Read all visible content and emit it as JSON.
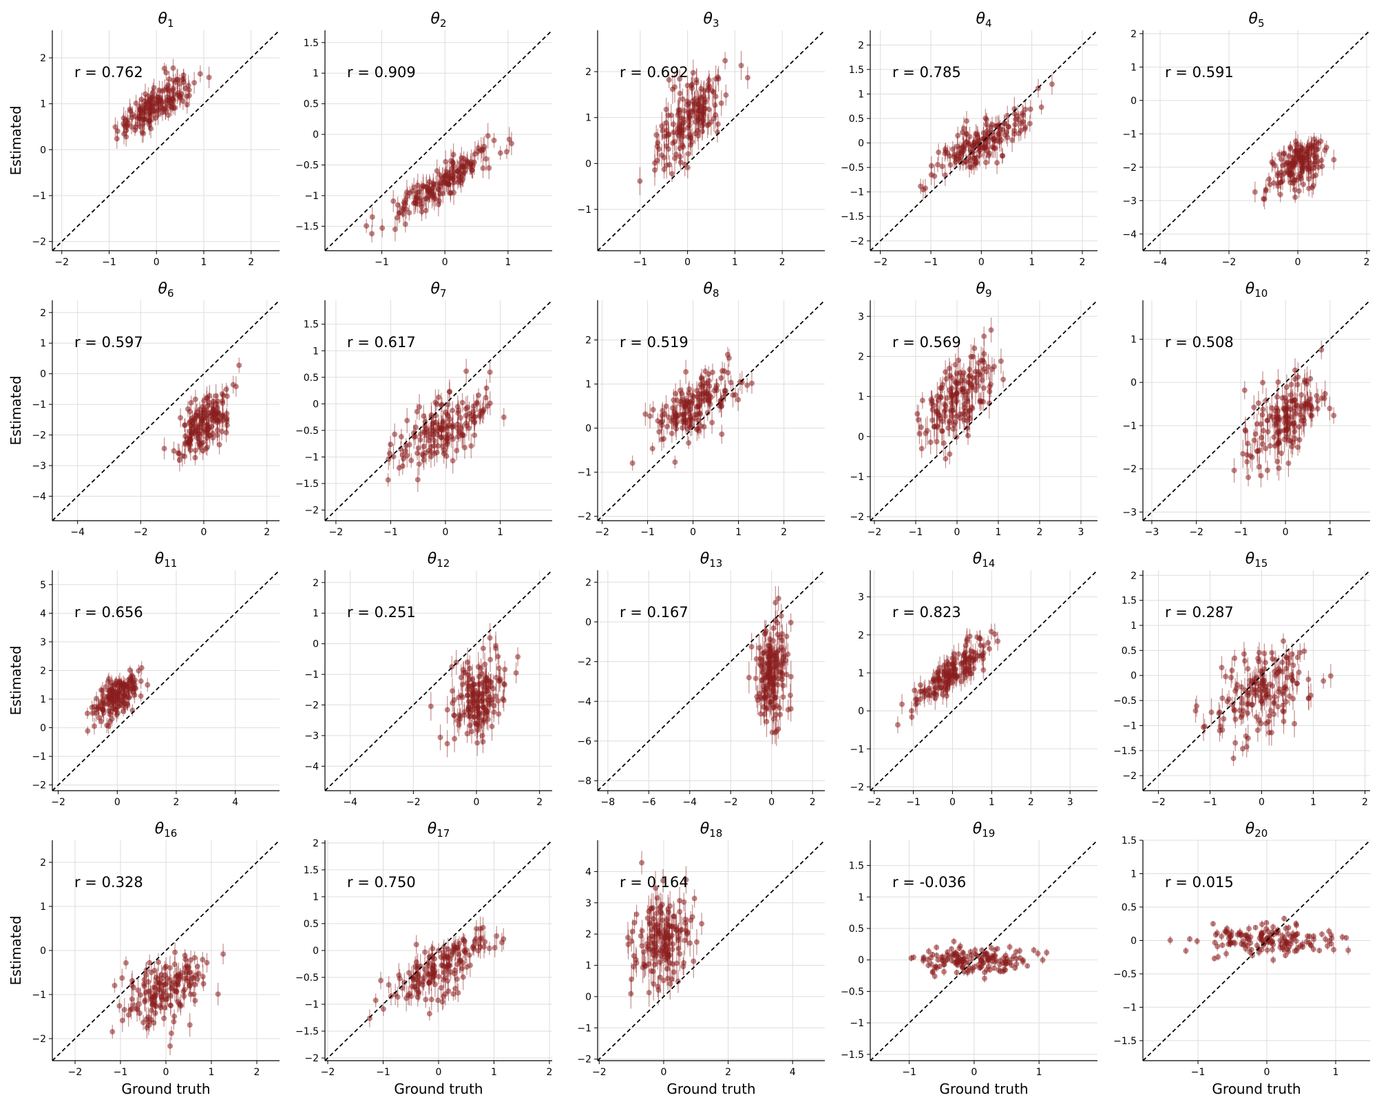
{
  "figure": {
    "xlabel": "Ground truth",
    "ylabel": "Estimated",
    "colors": {
      "points": "#8b1d1d",
      "identity_line": "#000000",
      "grid": "#dddddd"
    }
  },
  "chart_data": [
    {
      "type": "scatter",
      "title_symbol": "θ",
      "title_index": "1",
      "annotation": "r = 0.762",
      "r": 0.762,
      "xlim": [
        -2.2,
        2.6
      ],
      "ylim": [
        -2.2,
        2.6
      ],
      "xticks": [
        -2,
        -1,
        0,
        1,
        2
      ],
      "yticks": [
        -2,
        -1,
        0,
        1,
        2
      ],
      "cloud": {
        "x_center": 0.0,
        "y_center": 1.0,
        "x_spread": 0.4,
        "y_spread": 0.35,
        "x_range": [
          -1.8,
          1.5
        ]
      },
      "identity_line": true,
      "grid": true
    },
    {
      "type": "scatter",
      "title_symbol": "θ",
      "title_index": "2",
      "annotation": "r = 0.909",
      "r": 0.909,
      "xlim": [
        -1.9,
        1.7
      ],
      "ylim": [
        -1.9,
        1.7
      ],
      "xticks": [
        -1,
        0,
        1
      ],
      "yticks": [
        -1.5,
        -1.0,
        -0.5,
        0.0,
        0.5,
        1.0,
        1.5
      ],
      "cloud": {
        "x_center": 0.0,
        "y_center": -0.75,
        "x_spread": 0.4,
        "y_spread": 0.3,
        "x_range": [
          -1.4,
          1.4
        ]
      },
      "identity_line": true,
      "grid": true
    },
    {
      "type": "scatter",
      "title_symbol": "θ",
      "title_index": "3",
      "annotation": "r = 0.692",
      "r": 0.692,
      "xlim": [
        -1.9,
        2.9
      ],
      "ylim": [
        -1.9,
        2.9
      ],
      "xticks": [
        -1,
        0,
        1,
        2
      ],
      "yticks": [
        -1,
        0,
        1,
        2
      ],
      "cloud": {
        "x_center": 0.0,
        "y_center": 0.9,
        "x_spread": 0.4,
        "y_spread": 0.5,
        "x_range": [
          -1.5,
          1.9
        ]
      },
      "identity_line": true,
      "grid": true
    },
    {
      "type": "scatter",
      "title_symbol": "θ",
      "title_index": "4",
      "annotation": "r = 0.785",
      "r": 0.785,
      "xlim": [
        -2.2,
        2.3
      ],
      "ylim": [
        -2.2,
        2.3
      ],
      "xticks": [
        -2,
        -1,
        0,
        1,
        2
      ],
      "yticks": [
        -2.0,
        -1.5,
        -1.0,
        -0.5,
        0.0,
        0.5,
        1.0,
        1.5,
        2.0
      ],
      "cloud": {
        "x_center": 0.0,
        "y_center": 0.0,
        "x_spread": 0.45,
        "y_spread": 0.35,
        "x_range": [
          -1.8,
          1.9
        ]
      },
      "identity_line": true,
      "grid": true
    },
    {
      "type": "scatter",
      "title_symbol": "θ",
      "title_index": "5",
      "annotation": "r = 0.591",
      "r": 0.591,
      "xlim": [
        -4.5,
        2.1
      ],
      "ylim": [
        -4.5,
        2.1
      ],
      "xticks": [
        -4,
        -2,
        0,
        2
      ],
      "yticks": [
        -4,
        -3,
        -2,
        -1,
        0,
        1,
        2
      ],
      "cloud": {
        "x_center": 0.0,
        "y_center": -1.9,
        "x_spread": 0.45,
        "y_spread": 0.45,
        "x_range": [
          -1.7,
          1.6
        ]
      },
      "identity_line": true,
      "grid": true
    },
    {
      "type": "scatter",
      "title_symbol": "θ",
      "title_index": "6",
      "annotation": "r = 0.597",
      "r": 0.597,
      "xlim": [
        -4.8,
        2.4
      ],
      "ylim": [
        -4.8,
        2.4
      ],
      "xticks": [
        -4,
        -2,
        0,
        2
      ],
      "yticks": [
        -4,
        -3,
        -2,
        -1,
        0,
        1,
        2
      ],
      "cloud": {
        "x_center": 0.0,
        "y_center": -1.6,
        "x_spread": 0.45,
        "y_spread": 0.55,
        "x_range": [
          -1.8,
          1.7
        ]
      },
      "identity_line": true,
      "grid": true
    },
    {
      "type": "scatter",
      "title_symbol": "θ",
      "title_index": "7",
      "annotation": "r = 0.617",
      "r": 0.617,
      "xlim": [
        -2.2,
        1.95
      ],
      "ylim": [
        -2.2,
        1.95
      ],
      "xticks": [
        -2,
        -1,
        0,
        1
      ],
      "yticks": [
        -2.0,
        -1.5,
        -1.0,
        -0.5,
        0.0,
        0.5,
        1.0,
        1.5
      ],
      "cloud": {
        "x_center": 0.0,
        "y_center": -0.45,
        "x_spread": 0.45,
        "y_spread": 0.35,
        "x_range": [
          -1.9,
          1.6
        ]
      },
      "identity_line": true,
      "grid": true
    },
    {
      "type": "scatter",
      "title_symbol": "θ",
      "title_index": "8",
      "annotation": "r = 0.519",
      "r": 0.519,
      "xlim": [
        -2.1,
        2.9
      ],
      "ylim": [
        -2.1,
        2.9
      ],
      "xticks": [
        -2,
        -1,
        0,
        1,
        2
      ],
      "yticks": [
        -2,
        -1,
        0,
        1,
        2
      ],
      "cloud": {
        "x_center": 0.0,
        "y_center": 0.45,
        "x_spread": 0.45,
        "y_spread": 0.4,
        "x_range": [
          -1.8,
          1.8
        ]
      },
      "identity_line": true,
      "grid": true
    },
    {
      "type": "scatter",
      "title_symbol": "θ",
      "title_index": "9",
      "annotation": "r = 0.569",
      "r": 0.569,
      "xlim": [
        -2.1,
        3.4
      ],
      "ylim": [
        -2.1,
        3.4
      ],
      "xticks": [
        -2,
        -1,
        0,
        1,
        2,
        3
      ],
      "yticks": [
        -2,
        -1,
        0,
        1,
        2,
        3
      ],
      "cloud": {
        "x_center": 0.0,
        "y_center": 0.95,
        "x_spread": 0.45,
        "y_spread": 0.55,
        "x_range": [
          -1.6,
          2.0
        ]
      },
      "identity_line": true,
      "grid": true
    },
    {
      "type": "scatter",
      "title_symbol": "θ",
      "title_index": "10",
      "annotation": "r = 0.508",
      "r": 0.508,
      "xlim": [
        -3.2,
        1.9
      ],
      "ylim": [
        -3.2,
        1.9
      ],
      "xticks": [
        -3,
        -2,
        -1,
        0,
        1
      ],
      "yticks": [
        -3,
        -2,
        -1,
        0,
        1
      ],
      "cloud": {
        "x_center": 0.0,
        "y_center": -0.9,
        "x_spread": 0.45,
        "y_spread": 0.5,
        "x_range": [
          -1.4,
          1.6
        ]
      },
      "identity_line": true,
      "grid": true
    },
    {
      "type": "scatter",
      "title_symbol": "θ",
      "title_index": "11",
      "annotation": "r = 0.656",
      "r": 0.656,
      "xlim": [
        -2.2,
        5.5
      ],
      "ylim": [
        -2.2,
        5.5
      ],
      "xticks": [
        -2,
        0,
        2,
        4
      ],
      "yticks": [
        -2,
        -1,
        0,
        1,
        2,
        3,
        4,
        5
      ],
      "cloud": {
        "x_center": 0.0,
        "y_center": 1.15,
        "x_spread": 0.45,
        "y_spread": 0.45,
        "x_range": [
          -1.8,
          1.7
        ]
      },
      "identity_line": true,
      "grid": true
    },
    {
      "type": "scatter",
      "title_symbol": "θ",
      "title_index": "12",
      "annotation": "r = 0.251",
      "r": 0.251,
      "xlim": [
        -4.8,
        2.4
      ],
      "ylim": [
        -4.8,
        2.4
      ],
      "xticks": [
        -4,
        -2,
        0,
        2
      ],
      "yticks": [
        -4,
        -3,
        -2,
        -1,
        0,
        1,
        2
      ],
      "cloud": {
        "x_center": 0.0,
        "y_center": -1.8,
        "x_spread": 0.45,
        "y_spread": 0.7,
        "x_range": [
          -1.8,
          1.9
        ]
      },
      "identity_line": true,
      "grid": true
    },
    {
      "type": "scatter",
      "title_symbol": "θ",
      "title_index": "13",
      "annotation": "r = 0.167",
      "r": 0.167,
      "xlim": [
        -8.5,
        2.6
      ],
      "ylim": [
        -8.5,
        2.6
      ],
      "xticks": [
        -8,
        -6,
        -4,
        -2,
        0,
        2
      ],
      "yticks": [
        -8,
        -6,
        -4,
        -2,
        0,
        2
      ],
      "cloud": {
        "x_center": 0.0,
        "y_center": -2.7,
        "x_spread": 0.45,
        "y_spread": 1.2,
        "x_range": [
          -1.3,
          1.7
        ]
      },
      "identity_line": true,
      "grid": true
    },
    {
      "type": "scatter",
      "title_symbol": "θ",
      "title_index": "14",
      "annotation": "r = 0.823",
      "r": 0.823,
      "xlim": [
        -2.1,
        3.7
      ],
      "ylim": [
        -2.1,
        3.7
      ],
      "xticks": [
        -2,
        -1,
        0,
        1,
        2,
        3
      ],
      "yticks": [
        -2,
        -1,
        0,
        1,
        2,
        3
      ],
      "cloud": {
        "x_center": 0.0,
        "y_center": 1.0,
        "x_spread": 0.45,
        "y_spread": 0.45,
        "x_range": [
          -1.8,
          1.7
        ]
      },
      "identity_line": true,
      "grid": true
    },
    {
      "type": "scatter",
      "title_symbol": "θ",
      "title_index": "15",
      "annotation": "r = 0.287",
      "r": 0.287,
      "xlim": [
        -2.3,
        2.1
      ],
      "ylim": [
        -2.3,
        2.1
      ],
      "xticks": [
        -2,
        -1,
        0,
        1,
        2
      ],
      "yticks": [
        -2.0,
        -1.5,
        -1.0,
        -0.5,
        0.0,
        0.5,
        1.0,
        1.5,
        2.0
      ],
      "cloud": {
        "x_center": 0.0,
        "y_center": -0.35,
        "x_spread": 0.45,
        "y_spread": 0.4,
        "x_range": [
          -1.7,
          1.7
        ]
      },
      "identity_line": true,
      "grid": true
    },
    {
      "type": "scatter",
      "title_symbol": "θ",
      "title_index": "16",
      "annotation": "r = 0.328",
      "r": 0.328,
      "xlim": [
        -2.5,
        2.5
      ],
      "ylim": [
        -2.5,
        2.5
      ],
      "xticks": [
        -2,
        -1,
        0,
        1,
        2
      ],
      "yticks": [
        -2,
        -1,
        0,
        1,
        2
      ],
      "cloud": {
        "x_center": 0.0,
        "y_center": -0.9,
        "x_spread": 0.45,
        "y_spread": 0.4,
        "x_range": [
          -1.6,
          2.1
        ]
      },
      "identity_line": true,
      "grid": true
    },
    {
      "type": "scatter",
      "title_symbol": "θ",
      "title_index": "17",
      "annotation": "r = 0.750",
      "r": 0.75,
      "xlim": [
        -2.05,
        2.05
      ],
      "ylim": [
        -2.05,
        2.05
      ],
      "xticks": [
        -2,
        -1,
        0,
        1,
        2
      ],
      "yticks": [
        -2.0,
        -1.5,
        -1.0,
        -0.5,
        0.0,
        0.5,
        1.0,
        1.5,
        2.0
      ],
      "cloud": {
        "x_center": 0.0,
        "y_center": -0.35,
        "x_spread": 0.45,
        "y_spread": 0.35,
        "x_range": [
          -1.8,
          1.7
        ]
      },
      "identity_line": true,
      "grid": true
    },
    {
      "type": "scatter",
      "title_symbol": "θ",
      "title_index": "18",
      "annotation": "r = 0.164",
      "r": 0.164,
      "xlim": [
        -2.05,
        5.0
      ],
      "ylim": [
        -2.05,
        5.0
      ],
      "xticks": [
        -2,
        0,
        2,
        4
      ],
      "yticks": [
        -2,
        -1,
        0,
        1,
        2,
        3,
        4
      ],
      "cloud": {
        "x_center": 0.0,
        "y_center": 1.8,
        "x_spread": 0.45,
        "y_spread": 0.8,
        "x_range": [
          -1.3,
          1.8
        ]
      },
      "identity_line": true,
      "grid": true
    },
    {
      "type": "scatter",
      "title_symbol": "θ",
      "title_index": "19",
      "annotation": "r = -0.036",
      "r": -0.036,
      "xlim": [
        -1.6,
        1.9
      ],
      "ylim": [
        -1.6,
        1.9
      ],
      "xticks": [
        -1,
        0,
        1
      ],
      "yticks": [
        -1.5,
        -1.0,
        -0.5,
        0.0,
        0.5,
        1.0,
        1.5
      ],
      "cloud": {
        "x_center": 0.0,
        "y_center": 0.0,
        "x_spread": 0.45,
        "y_spread": 0.1,
        "x_range": [
          -1.3,
          1.7
        ]
      },
      "identity_line": true,
      "grid": true
    },
    {
      "type": "scatter",
      "title_symbol": "θ",
      "title_index": "20",
      "annotation": "r = 0.015",
      "r": 0.015,
      "xlim": [
        -1.8,
        1.5
      ],
      "ylim": [
        -1.8,
        1.5
      ],
      "xticks": [
        -1,
        0,
        1
      ],
      "yticks": [
        -1.5,
        -1.0,
        -0.5,
        0.0,
        0.5,
        1.0,
        1.5
      ],
      "cloud": {
        "x_center": 0.0,
        "y_center": 0.0,
        "x_spread": 0.45,
        "y_spread": 0.1,
        "x_range": [
          -1.6,
          1.3
        ]
      },
      "identity_line": true,
      "grid": true
    }
  ]
}
